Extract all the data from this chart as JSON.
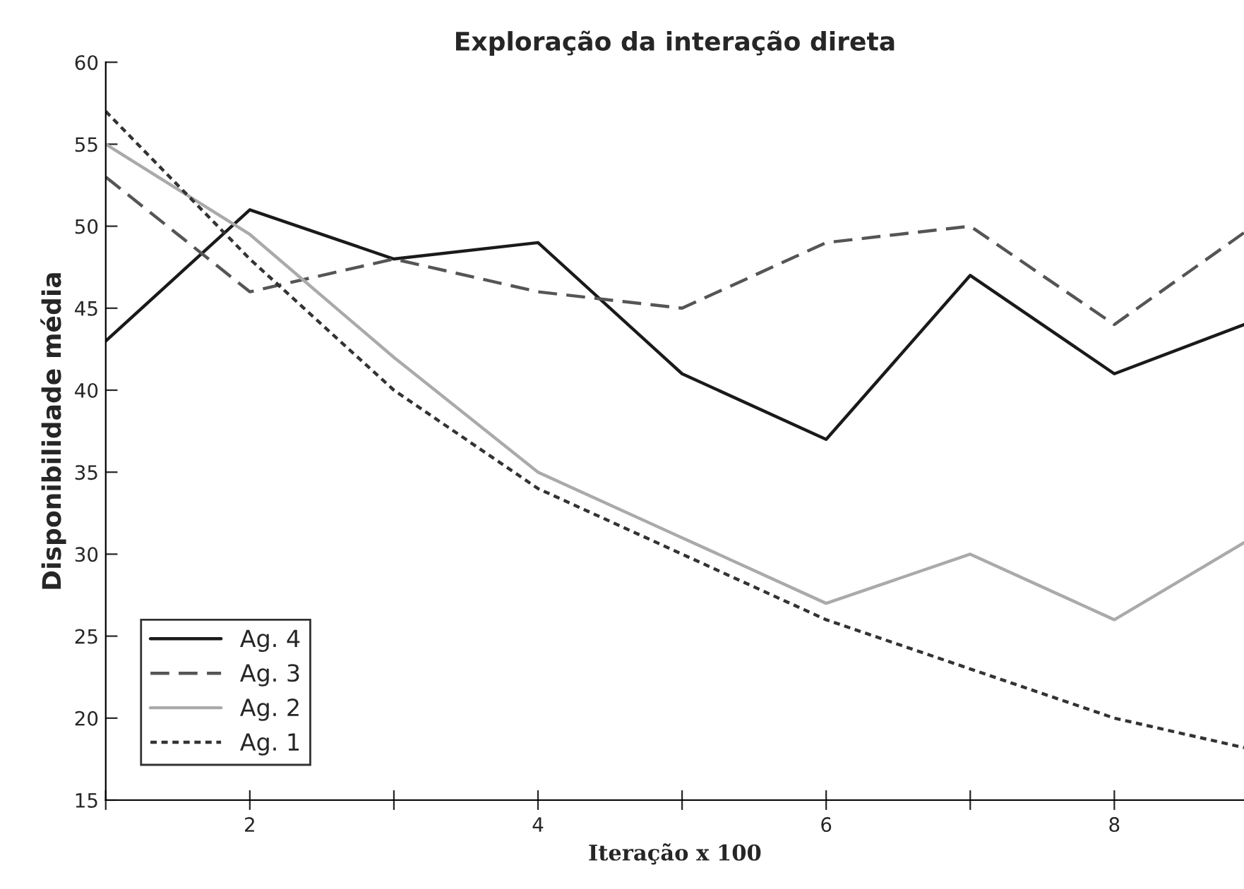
{
  "chart_data": {
    "type": "line",
    "title": "Exploração da interação direta",
    "xlabel": "Iteração x 100",
    "ylabel": "Disponibilidade média",
    "x": [
      1,
      2,
      3,
      4,
      5,
      6,
      7,
      8,
      8.9
    ],
    "series": [
      {
        "name": "Ag. 4",
        "color": "#1a1a1a",
        "line_style": "solid",
        "values": [
          43,
          51,
          48,
          49,
          41,
          37,
          47,
          41,
          44
        ]
      },
      {
        "name": "Ag. 3",
        "color": "#555555",
        "line_style": "dashed",
        "values": [
          53,
          46,
          48,
          46,
          45,
          49,
          50,
          44,
          49.6
        ]
      },
      {
        "name": "Ag. 2",
        "color": "#aaaaaa",
        "line_style": "solid",
        "values": [
          55,
          49.5,
          42,
          35,
          31,
          27,
          30,
          26,
          30.7
        ]
      },
      {
        "name": "Ag. 1",
        "color": "#333333",
        "line_style": "dotted",
        "values": [
          57,
          48,
          40,
          34,
          30,
          26,
          23,
          20,
          18.2
        ]
      }
    ],
    "xlim": [
      1,
      8.9
    ],
    "xticks": [
      {
        "value": 1,
        "label": null
      },
      2,
      {
        "value": 3,
        "label": null
      },
      4,
      {
        "value": 5,
        "label": null
      },
      6,
      {
        "value": 7,
        "label": null
      },
      8
    ],
    "ylim": [
      15,
      60
    ],
    "yticks": [
      15,
      20,
      25,
      30,
      35,
      40,
      45,
      50,
      55,
      60
    ],
    "grid": false,
    "legend": "bottom left",
    "marker": "none"
  }
}
